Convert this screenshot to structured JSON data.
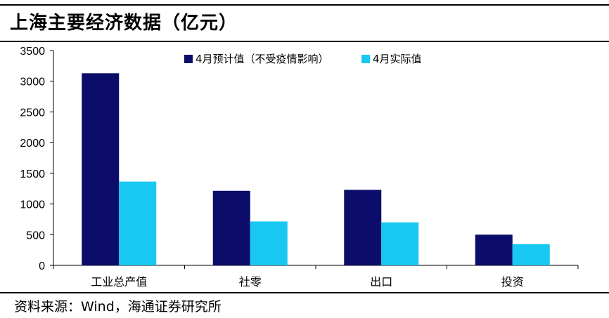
{
  "header": {
    "title": "上海主要经济数据（亿元）"
  },
  "footer": {
    "source": "资料来源：Wind，海通证券研究所"
  },
  "chart_data": {
    "type": "bar",
    "categories": [
      "工业总产值",
      "社零",
      "出口",
      "投资"
    ],
    "series": [
      {
        "name": "4月预计值（不受疫情影响）",
        "color": "#0c0c6b",
        "values": [
          3130,
          1215,
          1230,
          500
        ]
      },
      {
        "name": "4月实际值",
        "color": "#18c8f2",
        "values": [
          1365,
          715,
          700,
          345
        ]
      }
    ],
    "yticks": [
      0,
      500,
      1000,
      1500,
      2000,
      2500,
      3000,
      3500
    ],
    "ylim": [
      0,
      3500
    ],
    "legend": "top-center",
    "grid": false
  }
}
